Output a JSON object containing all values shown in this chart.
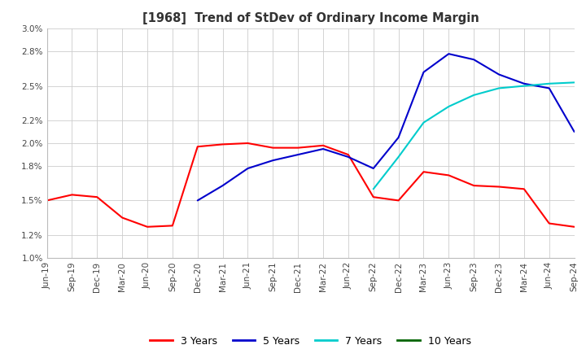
{
  "title": "[1968]  Trend of StDev of Ordinary Income Margin",
  "ylim": [
    1.0,
    3.0
  ],
  "yticks": [
    1.0,
    1.2,
    1.5,
    1.8,
    2.0,
    2.2,
    2.5,
    2.8,
    3.0
  ],
  "background_color": "#ffffff",
  "grid_color": "#cccccc",
  "series": {
    "3 Years": {
      "color": "#ff0000",
      "data": [
        [
          "Jun-19",
          1.5
        ],
        [
          "Sep-19",
          1.55
        ],
        [
          "Dec-19",
          1.53
        ],
        [
          "Mar-20",
          1.35
        ],
        [
          "Jun-20",
          1.27
        ],
        [
          "Sep-20",
          1.28
        ],
        [
          "Dec-20",
          1.97
        ],
        [
          "Mar-21",
          1.99
        ],
        [
          "Jun-21",
          2.0
        ],
        [
          "Sep-21",
          1.96
        ],
        [
          "Dec-21",
          1.96
        ],
        [
          "Mar-22",
          1.98
        ],
        [
          "Jun-22",
          1.9
        ],
        [
          "Sep-22",
          1.53
        ],
        [
          "Dec-22",
          1.5
        ],
        [
          "Mar-23",
          1.75
        ],
        [
          "Jun-23",
          1.72
        ],
        [
          "Sep-23",
          1.63
        ],
        [
          "Dec-23",
          1.62
        ],
        [
          "Mar-24",
          1.6
        ],
        [
          "Jun-24",
          1.3
        ],
        [
          "Sep-24",
          1.27
        ]
      ]
    },
    "5 Years": {
      "color": "#0000cc",
      "data": [
        [
          "Jun-19",
          null
        ],
        [
          "Sep-19",
          null
        ],
        [
          "Dec-19",
          null
        ],
        [
          "Mar-20",
          null
        ],
        [
          "Jun-20",
          null
        ],
        [
          "Sep-20",
          null
        ],
        [
          "Dec-20",
          1.5
        ],
        [
          "Mar-21",
          1.63
        ],
        [
          "Jun-21",
          1.78
        ],
        [
          "Sep-21",
          1.85
        ],
        [
          "Dec-21",
          1.9
        ],
        [
          "Mar-22",
          1.95
        ],
        [
          "Jun-22",
          1.88
        ],
        [
          "Sep-22",
          1.78
        ],
        [
          "Dec-22",
          2.05
        ],
        [
          "Mar-23",
          2.62
        ],
        [
          "Jun-23",
          2.78
        ],
        [
          "Sep-23",
          2.73
        ],
        [
          "Dec-23",
          2.6
        ],
        [
          "Mar-24",
          2.52
        ],
        [
          "Jun-24",
          2.48
        ],
        [
          "Sep-24",
          2.1
        ]
      ]
    },
    "7 Years": {
      "color": "#00cccc",
      "data": [
        [
          "Jun-19",
          null
        ],
        [
          "Sep-19",
          null
        ],
        [
          "Dec-19",
          null
        ],
        [
          "Mar-20",
          null
        ],
        [
          "Jun-20",
          null
        ],
        [
          "Sep-20",
          null
        ],
        [
          "Dec-20",
          null
        ],
        [
          "Mar-21",
          null
        ],
        [
          "Jun-21",
          null
        ],
        [
          "Sep-21",
          null
        ],
        [
          "Dec-21",
          null
        ],
        [
          "Mar-22",
          null
        ],
        [
          "Jun-22",
          null
        ],
        [
          "Sep-22",
          1.6
        ],
        [
          "Dec-22",
          1.88
        ],
        [
          "Mar-23",
          2.18
        ],
        [
          "Jun-23",
          2.32
        ],
        [
          "Sep-23",
          2.42
        ],
        [
          "Dec-23",
          2.48
        ],
        [
          "Mar-24",
          2.5
        ],
        [
          "Jun-24",
          2.52
        ],
        [
          "Sep-24",
          2.53
        ]
      ]
    },
    "10 Years": {
      "color": "#006400",
      "data": [
        [
          "Jun-19",
          null
        ],
        [
          "Sep-19",
          null
        ],
        [
          "Dec-19",
          null
        ],
        [
          "Mar-20",
          null
        ],
        [
          "Jun-20",
          null
        ],
        [
          "Sep-20",
          null
        ],
        [
          "Dec-20",
          null
        ],
        [
          "Mar-21",
          null
        ],
        [
          "Jun-21",
          null
        ],
        [
          "Sep-21",
          null
        ],
        [
          "Dec-21",
          null
        ],
        [
          "Mar-22",
          null
        ],
        [
          "Jun-22",
          null
        ],
        [
          "Sep-22",
          null
        ],
        [
          "Dec-22",
          null
        ],
        [
          "Mar-23",
          null
        ],
        [
          "Jun-23",
          null
        ],
        [
          "Sep-23",
          null
        ],
        [
          "Dec-23",
          null
        ],
        [
          "Mar-24",
          null
        ],
        [
          "Jun-24",
          null
        ],
        [
          "Sep-24",
          null
        ]
      ]
    }
  },
  "legend_labels": [
    "3 Years",
    "5 Years",
    "7 Years",
    "10 Years"
  ],
  "legend_colors": [
    "#ff0000",
    "#0000cc",
    "#00cccc",
    "#006400"
  ]
}
